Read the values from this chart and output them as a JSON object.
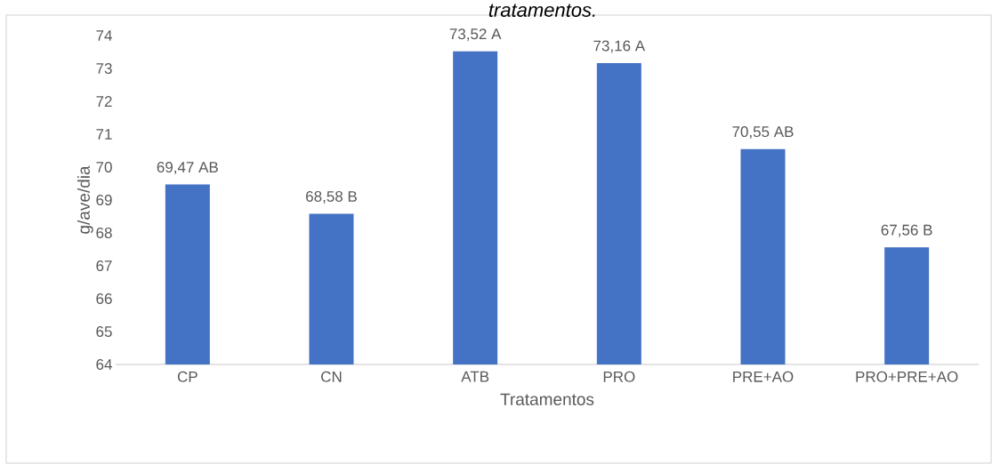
{
  "chart_data": {
    "type": "bar",
    "title": "tratamentos.",
    "xlabel": "Tratamentos",
    "ylabel": "g/ave/dia",
    "categories": [
      "CP",
      "CN",
      "ATB",
      "PRO",
      "PRE+AO",
      "PRO+PRE+AO"
    ],
    "values": [
      69.47,
      68.58,
      73.52,
      73.16,
      70.55,
      67.56
    ],
    "value_labels": [
      "69,47 AB",
      "68,58 B",
      "73,52 A",
      "73,16 A",
      "70,55 AB",
      "67,56 B"
    ],
    "color": "#4472c4",
    "ylim": [
      64,
      74
    ],
    "yticks": [
      64,
      65,
      66,
      67,
      68,
      69,
      70,
      71,
      72,
      73,
      74
    ],
    "grid": false
  }
}
